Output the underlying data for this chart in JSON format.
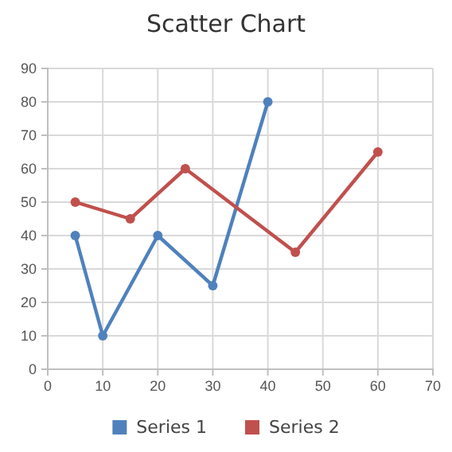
{
  "chart_data": {
    "type": "line",
    "title": "Scatter Chart",
    "series": [
      {
        "name": "Series 1",
        "color": "#4f81bd",
        "x": [
          5,
          10,
          20,
          30,
          40
        ],
        "values": [
          40,
          10,
          40,
          25,
          80
        ]
      },
      {
        "name": "Series 2",
        "color": "#c0504d",
        "x": [
          5,
          15,
          25,
          45,
          60
        ],
        "values": [
          50,
          45,
          60,
          35,
          65
        ]
      }
    ],
    "xlim": [
      0,
      70
    ],
    "xticks": [
      0,
      10,
      20,
      30,
      40,
      50,
      60,
      70
    ],
    "ylim": [
      0,
      90
    ],
    "yticks": [
      0,
      10,
      20,
      30,
      40,
      50,
      60,
      70,
      80,
      90
    ],
    "grid": true,
    "legend": "bottom",
    "marker": "circle",
    "line_style": "solid"
  }
}
